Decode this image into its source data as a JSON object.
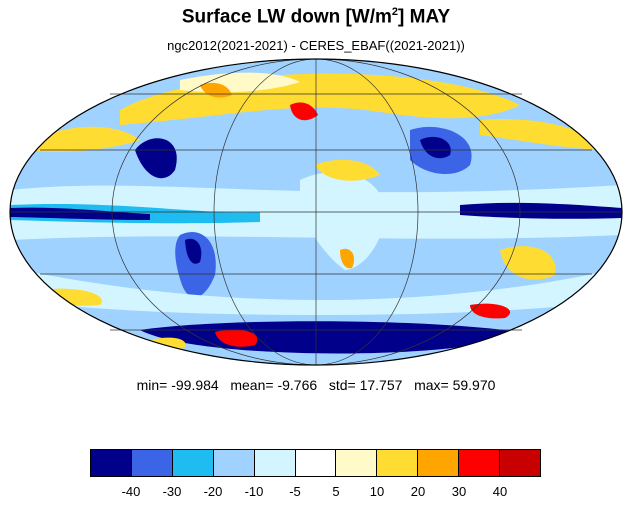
{
  "title": {
    "main": "Surface LW down [W/m",
    "sup": "2",
    "tail": "]  MAY"
  },
  "subtitle": "ngc2012(2021-2021) - CERES_EBAF((2021-2021))",
  "stats": {
    "min": "-99.984",
    "mean": "-9.766",
    "std": "17.757",
    "max": "59.970"
  },
  "colorbar": {
    "colors": [
      "#00008b",
      "#3c64e6",
      "#1ebcf0",
      "#a0d2ff",
      "#d2f5ff",
      "#ffffff",
      "#fffac8",
      "#ffdc32",
      "#ffa500",
      "#ff0000",
      "#c80000"
    ],
    "tick_labels": [
      "-40",
      "-30",
      "-20",
      "-10",
      "-5",
      "5",
      "10",
      "20",
      "30",
      "40"
    ]
  },
  "map": {
    "projection": "mollweide",
    "graticule_lon_step": 60,
    "graticule_lat_step": 30
  }
}
